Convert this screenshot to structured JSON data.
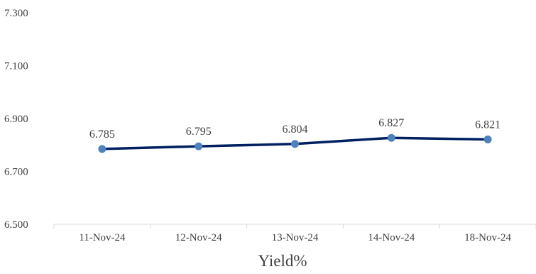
{
  "chart_data": {
    "type": "line",
    "title": "",
    "xlabel": "Yield%",
    "ylabel": "",
    "categories": [
      "11-Nov-24",
      "12-Nov-24",
      "13-Nov-24",
      "14-Nov-24",
      "18-Nov-24"
    ],
    "series": [
      {
        "values": [
          6.785,
          6.795,
          6.804,
          6.827,
          6.821
        ],
        "data_labels": [
          "6.785",
          "6.795",
          "6.804",
          "6.827",
          "6.821"
        ],
        "line_color": "#002060",
        "marker_color": "#4F81BD"
      }
    ],
    "ylim": [
      6.5,
      7.3
    ],
    "y_ticks": [
      "6.500",
      "6.700",
      "6.900",
      "7.100",
      "7.300"
    ],
    "grid": false,
    "legend": "none",
    "axis_color": "#D9D9D9"
  }
}
